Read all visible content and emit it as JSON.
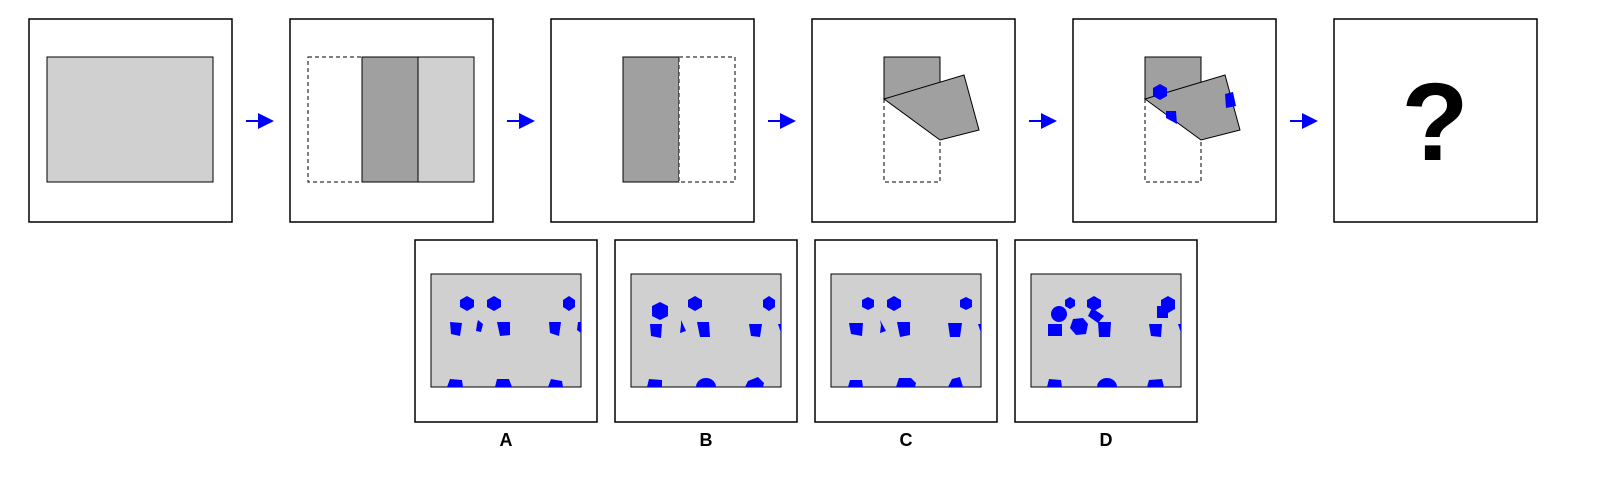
{
  "question_mark": "?",
  "options": [
    {
      "label": "A"
    },
    {
      "label": "B"
    },
    {
      "label": "C"
    },
    {
      "label": "D"
    }
  ],
  "colors": {
    "paper": "#d0d0d0",
    "folded_layer": "#a0a0a0",
    "hole": "#0000ff",
    "arrow": "#0000ff",
    "border": "#000000"
  }
}
